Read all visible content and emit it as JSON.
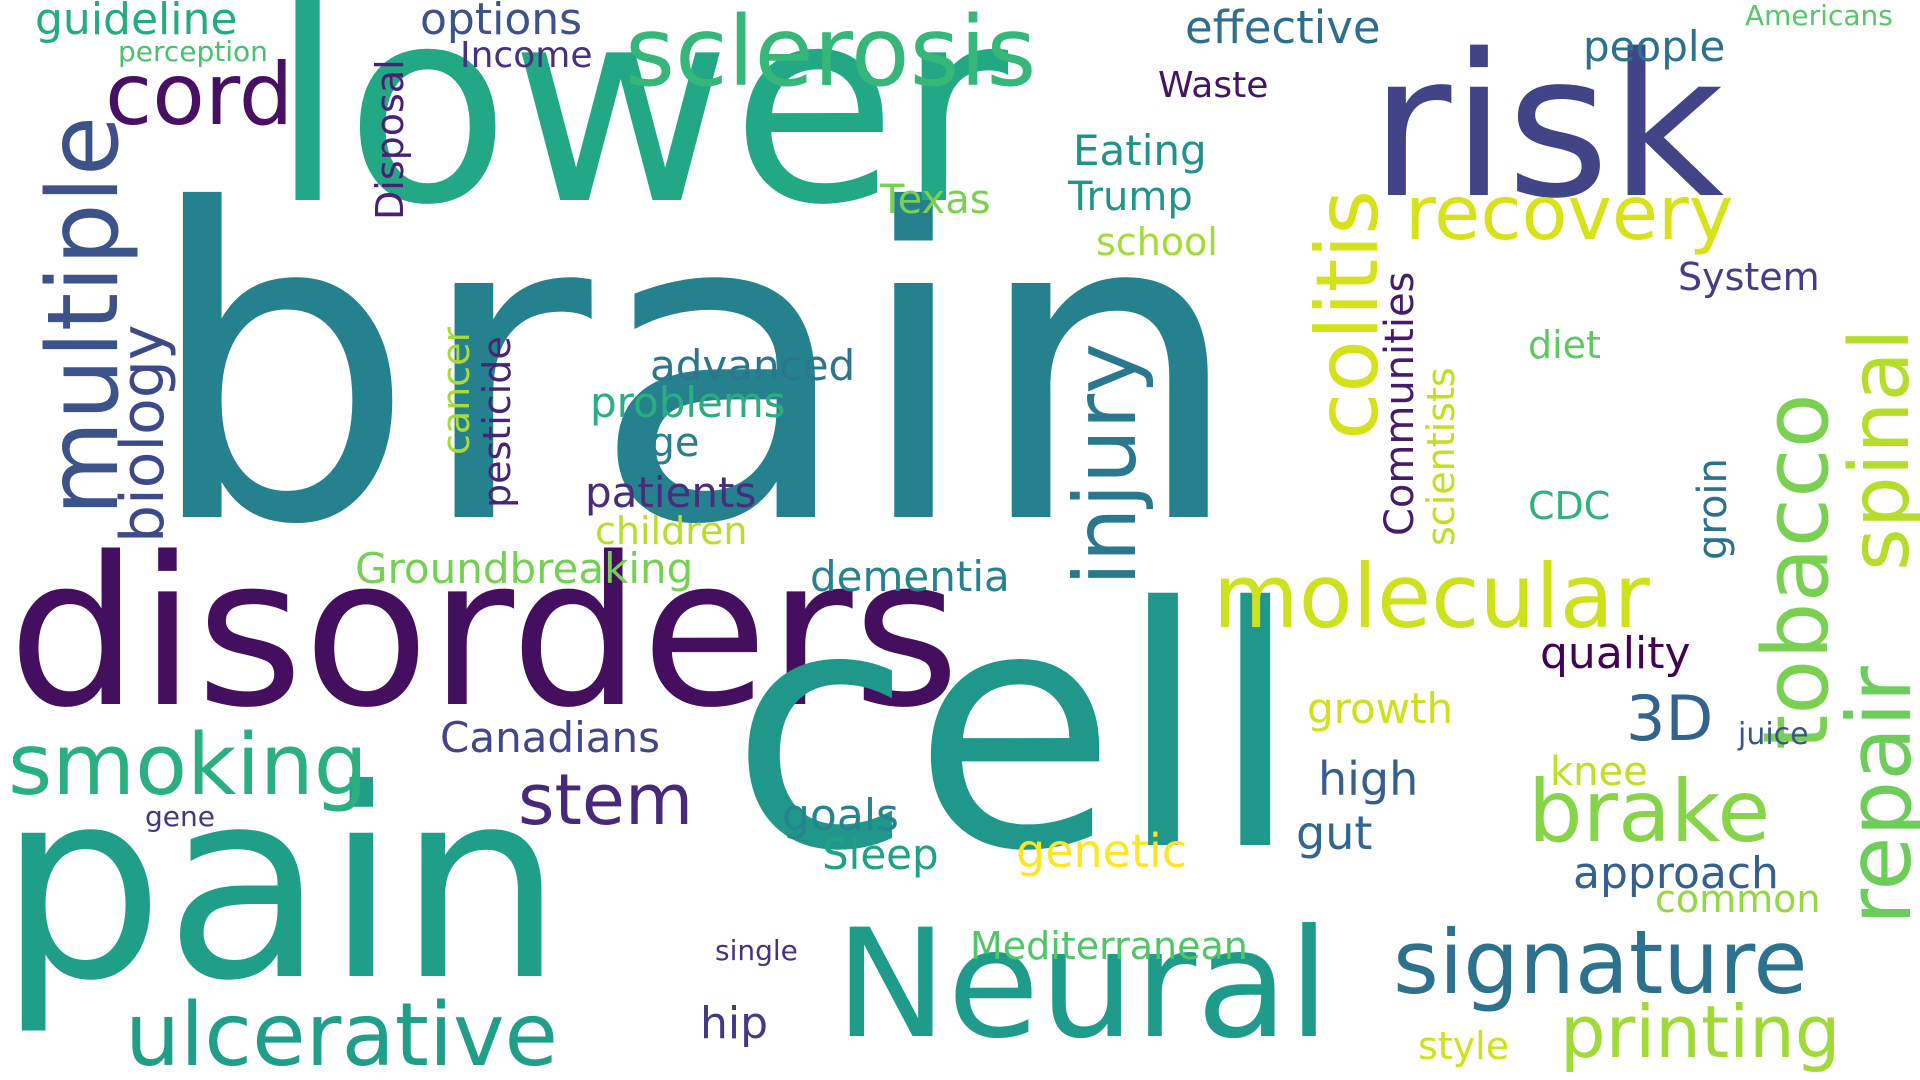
{
  "words": [
    {
      "text": "brain",
      "color": "#26818e",
      "rotated": false
    },
    {
      "text": "lower",
      "color": "#22a884",
      "rotated": false
    },
    {
      "text": "risk",
      "color": "#414487",
      "rotated": false
    },
    {
      "text": "disorders",
      "color": "#440f5e",
      "rotated": false
    },
    {
      "text": "cell",
      "color": "#1f988b",
      "rotated": false
    },
    {
      "text": "pain",
      "color": "#1f9f88",
      "rotated": false
    },
    {
      "text": "Neural",
      "color": "#1e9b8a",
      "rotated": false
    },
    {
      "text": "multiple",
      "color": "#3b528b",
      "rotated": true
    },
    {
      "text": "sclerosis",
      "color": "#35b779",
      "rotated": false
    },
    {
      "text": "cord",
      "color": "#471063",
      "rotated": false
    },
    {
      "text": "colitis",
      "color": "#d5e21a",
      "rotated": true
    },
    {
      "text": "injury",
      "color": "#2a788e",
      "rotated": true
    },
    {
      "text": "tobacco",
      "color": "#7ad151",
      "rotated": true
    },
    {
      "text": "spinal",
      "color": "#b5de2b",
      "rotated": true
    },
    {
      "text": "repair",
      "color": "#6ccd5a",
      "rotated": true
    },
    {
      "text": "recovery",
      "color": "#d8e219",
      "rotated": false
    },
    {
      "text": "molecular",
      "color": "#cde11d",
      "rotated": false
    },
    {
      "text": "smoking",
      "color": "#2ab07f",
      "rotated": false
    },
    {
      "text": "brake",
      "color": "#86d549",
      "rotated": false
    },
    {
      "text": "signature",
      "color": "#2c728e",
      "rotated": false
    },
    {
      "text": "ulcerative",
      "color": "#1f9e89",
      "rotated": false
    },
    {
      "text": "printing",
      "color": "#a0da39",
      "rotated": false
    },
    {
      "text": "biology",
      "color": "#3e4989",
      "rotated": true
    },
    {
      "text": "stem",
      "color": "#482878",
      "rotated": false
    },
    {
      "text": "3D",
      "color": "#33638d",
      "rotated": false
    },
    {
      "text": "guideline",
      "color": "#25ab82",
      "rotated": false
    },
    {
      "text": "perception",
      "color": "#4ac16d",
      "rotated": false
    },
    {
      "text": "options",
      "color": "#3b528b",
      "rotated": false
    },
    {
      "text": "Income",
      "color": "#46327e",
      "rotated": false
    },
    {
      "text": "Disposal",
      "color": "#482173",
      "rotated": true
    },
    {
      "text": "effective",
      "color": "#2e6e8e",
      "rotated": false
    },
    {
      "text": "people",
      "color": "#2c718e",
      "rotated": false
    },
    {
      "text": "Americans",
      "color": "#56c667",
      "rotated": false
    },
    {
      "text": "Waste",
      "color": "#471365",
      "rotated": false
    },
    {
      "text": "Eating",
      "color": "#21918c",
      "rotated": false
    },
    {
      "text": "Texas",
      "color": "#7ad151",
      "rotated": false
    },
    {
      "text": "Trump",
      "color": "#1f968b",
      "rotated": false
    },
    {
      "text": "school",
      "color": "#a5db36",
      "rotated": false
    },
    {
      "text": "System",
      "color": "#433e85",
      "rotated": false
    },
    {
      "text": "diet",
      "color": "#5ec962",
      "rotated": false
    },
    {
      "text": "advanced",
      "color": "#2a768e",
      "rotated": false
    },
    {
      "text": "problems",
      "color": "#29af7f",
      "rotated": false
    },
    {
      "text": "age",
      "color": "#287d8e",
      "rotated": false
    },
    {
      "text": "patients",
      "color": "#472d7b",
      "rotated": false
    },
    {
      "text": "children",
      "color": "#b8de29",
      "rotated": false
    },
    {
      "text": "Groundbreaking",
      "color": "#75d054",
      "rotated": false
    },
    {
      "text": "cancer",
      "color": "#a8db34",
      "rotated": true
    },
    {
      "text": "pesticide",
      "color": "#482475",
      "rotated": true
    },
    {
      "text": "Communities",
      "color": "#481a6c",
      "rotated": true
    },
    {
      "text": "scientists",
      "color": "#c2df23",
      "rotated": true
    },
    {
      "text": "groin",
      "color": "#2d708e",
      "rotated": true
    },
    {
      "text": "CDC",
      "color": "#2db27d",
      "rotated": false
    },
    {
      "text": "dementia",
      "color": "#26828e",
      "rotated": false
    },
    {
      "text": "quality",
      "color": "#440154",
      "rotated": false
    },
    {
      "text": "growth",
      "color": "#cde11d",
      "rotated": false
    },
    {
      "text": "juice",
      "color": "#39568c",
      "rotated": false
    },
    {
      "text": "knee",
      "color": "#c0df25",
      "rotated": false
    },
    {
      "text": "Canadians",
      "color": "#404688",
      "rotated": false
    },
    {
      "text": "high",
      "color": "#355f8d",
      "rotated": false
    },
    {
      "text": "goals",
      "color": "#25848e",
      "rotated": false
    },
    {
      "text": "gut",
      "color": "#31668e",
      "rotated": false
    },
    {
      "text": "Sleep",
      "color": "#1fa187",
      "rotated": false
    },
    {
      "text": "genetic",
      "color": "#fde725",
      "rotated": false
    },
    {
      "text": "approach",
      "color": "#34608d",
      "rotated": false
    },
    {
      "text": "common",
      "color": "#95d840",
      "rotated": false
    },
    {
      "text": "gene",
      "color": "#453781",
      "rotated": false
    },
    {
      "text": "single",
      "color": "#46337f",
      "rotated": false
    },
    {
      "text": "Mediterranean",
      "color": "#52c569",
      "rotated": false
    },
    {
      "text": "hip",
      "color": "#443a83",
      "rotated": false
    },
    {
      "text": "style",
      "color": "#d0e11c",
      "rotated": false
    }
  ]
}
